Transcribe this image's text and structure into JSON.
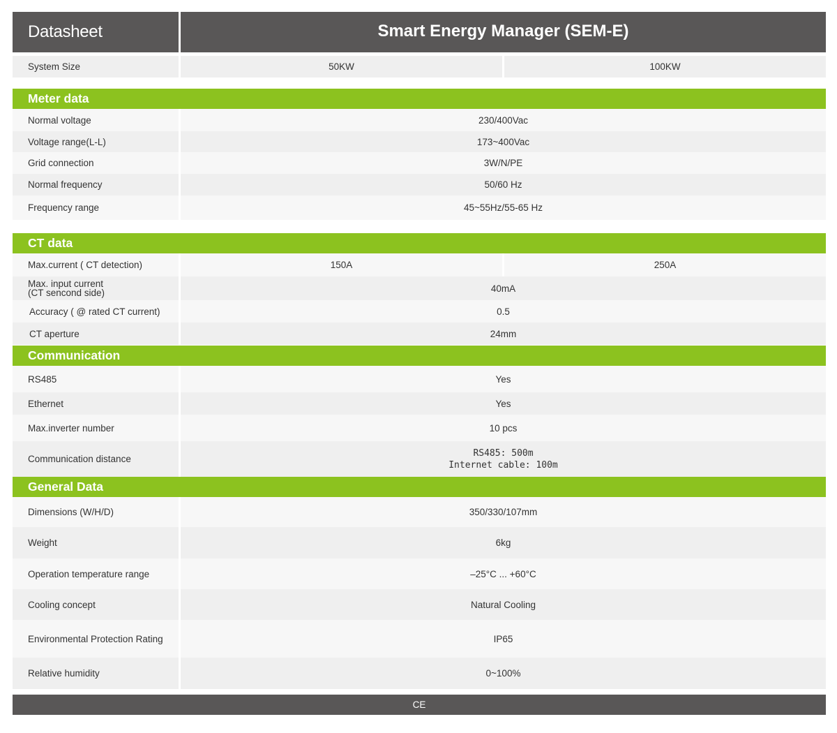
{
  "header": {
    "left_title": "Datasheet",
    "product_title": "Smart Energy Manager (SEM-E)"
  },
  "system_size": {
    "label": "System Size",
    "values": [
      "50KW",
      "100KW"
    ]
  },
  "meter": {
    "title": "Meter data",
    "rows": [
      {
        "label": "Normal voltage",
        "value": "230/400Vac"
      },
      {
        "label": "Voltage range(L-L)",
        "value": "173~400Vac"
      },
      {
        "label": "Grid connection",
        "value": "3W/N/PE"
      },
      {
        "label": "Normal frequency",
        "value": "50/60 Hz"
      },
      {
        "label": "Frequency range",
        "value": "45~55Hz/55-65 Hz"
      }
    ]
  },
  "ct": {
    "title": "CT data",
    "max_current": {
      "label": "Max.current  ( CT detection)",
      "values": [
        "150A",
        "250A"
      ]
    },
    "max_input": {
      "label_line1": "Max. input current",
      "label_line2": "(CT sencond side)",
      "value": "40mA"
    },
    "rows": [
      {
        "label": "Accuracy ( @ rated CT current)",
        "value": "0.5"
      },
      {
        "label": "CT aperture",
        "value": "24mm"
      }
    ]
  },
  "communication": {
    "title": "Communication",
    "rows": [
      {
        "label": "RS485",
        "value": "Yes"
      },
      {
        "label": "Ethernet",
        "value": "Yes"
      },
      {
        "label": "Max.inverter number",
        "value": "10 pcs"
      }
    ],
    "distance": {
      "label": "Communication distance",
      "value_line1": "RS485: 500m",
      "value_line2": "Internet cable: 100m"
    }
  },
  "general": {
    "title": "General Data",
    "rows": [
      {
        "label": "Dimensions (W/H/D)",
        "value": "350/330/107mm"
      },
      {
        "label": "Weight",
        "value": "6kg"
      },
      {
        "label": "Operation temperature range",
        "value": "–25°C ... +60°C"
      },
      {
        "label": "Cooling concept",
        "value": "Natural Cooling"
      },
      {
        "label": "Environmental Protection Rating",
        "value": "IP65"
      },
      {
        "label": "Relative humidity",
        "value": "0~100%"
      }
    ]
  },
  "footer": {
    "text": "CE"
  }
}
